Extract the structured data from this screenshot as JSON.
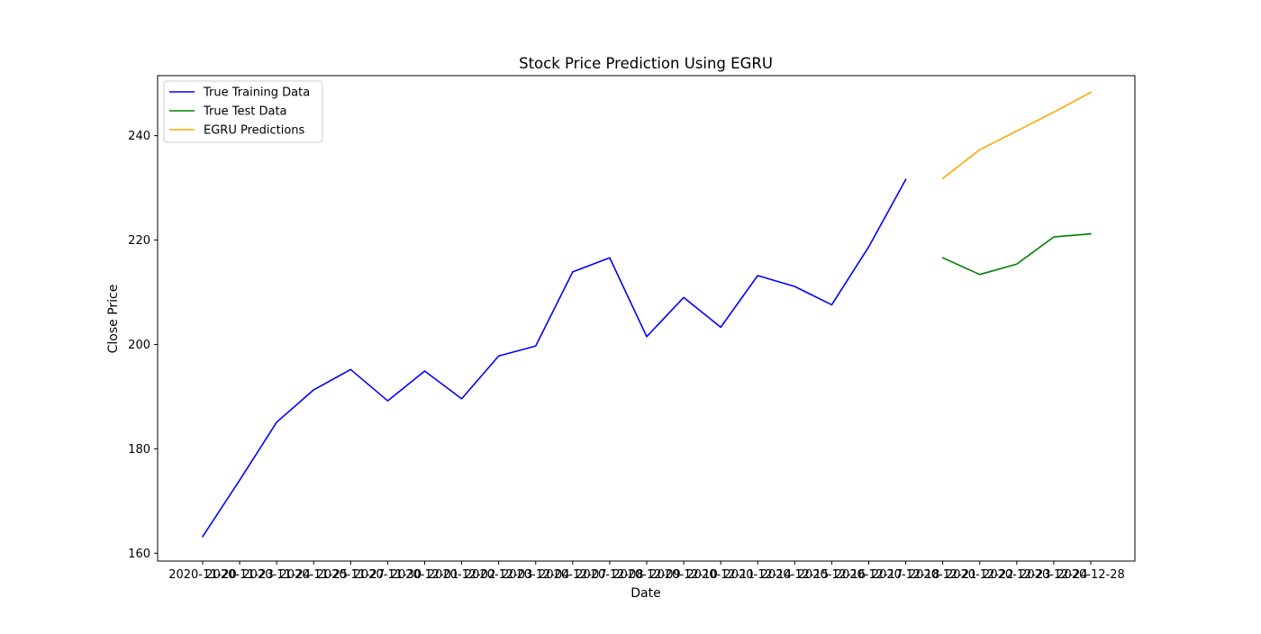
{
  "chart_data": {
    "type": "line",
    "title": "Stock Price Prediction Using EGRU",
    "xlabel": "Date",
    "ylabel": "Close Price",
    "ylim": [
      158.5,
      251.5
    ],
    "yticks": [
      160,
      180,
      200,
      220,
      240
    ],
    "x_dates": [
      "2020-11-20",
      "2020-11-23",
      "2020-11-24",
      "2020-11-25",
      "2020-11-27",
      "2020-11-30",
      "2020-12-01",
      "2020-12-02",
      "2020-12-03",
      "2020-12-04",
      "2020-12-07",
      "2020-12-08",
      "2020-12-09",
      "2020-12-10",
      "2020-12-11",
      "2020-12-14",
      "2020-12-15",
      "2020-12-16",
      "2020-12-17",
      "2020-12-18",
      "2020-12-21",
      "2020-12-22",
      "2020-12-23",
      "2020-12-24",
      "2020-12-28"
    ],
    "grid": false,
    "legend_position": "top-left",
    "series": [
      {
        "name": "True Training Data",
        "color": "#0000ff",
        "start_index": 0,
        "values": [
          163.2,
          174.0,
          185.1,
          191.3,
          195.2,
          189.2,
          194.9,
          189.6,
          197.8,
          199.7,
          213.9,
          216.6,
          201.5,
          209.0,
          203.3,
          213.2,
          211.1,
          207.6,
          218.7,
          231.6
        ]
      },
      {
        "name": "True Test Data",
        "color": "#008000",
        "start_index": 20,
        "values": [
          216.6,
          213.4,
          215.4,
          220.6,
          221.2
        ]
      },
      {
        "name": "EGRU Predictions",
        "color": "#ffa500",
        "start_index": 20,
        "values": [
          231.8,
          237.3,
          240.9,
          244.5,
          248.3
        ]
      }
    ]
  }
}
